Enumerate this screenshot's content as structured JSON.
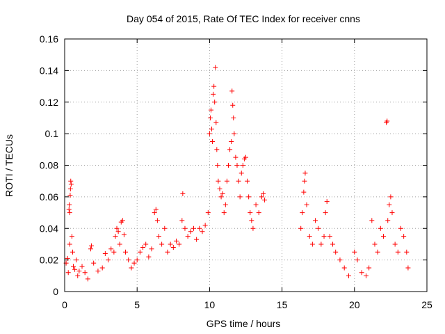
{
  "chart_data": {
    "type": "scatter",
    "title": "Day 054 of 2015, Rate Of TEC Index for receiver cnns",
    "xlabel": "GPS time / hours",
    "ylabel": "ROTI / TECUs",
    "xlim": [
      0,
      25
    ],
    "ylim": [
      0,
      0.16
    ],
    "xticks": [
      0,
      5,
      10,
      15,
      20,
      25
    ],
    "yticks": [
      0,
      0.02,
      0.04,
      0.06,
      0.08,
      0.1,
      0.12,
      0.14,
      0.16
    ],
    "xtick_labels": [
      "0",
      "5",
      "10",
      "15",
      "20",
      "25"
    ],
    "ytick_labels": [
      "0",
      "0.02",
      "0.04",
      "0.06",
      "0.08",
      "0.1",
      "0.12",
      "0.14",
      "0.16"
    ],
    "grid": true,
    "marker": "+",
    "colors": {
      "points": "#ff0000",
      "grid": "#a0a0a0",
      "axis": "#000000"
    },
    "series": [
      {
        "name": "ROTI",
        "points": [
          [
            0.1,
            0.018
          ],
          [
            0.2,
            0.021
          ],
          [
            0.25,
            0.012
          ],
          [
            0.3,
            0.052
          ],
          [
            0.32,
            0.055
          ],
          [
            0.35,
            0.05
          ],
          [
            0.38,
            0.061
          ],
          [
            0.4,
            0.065
          ],
          [
            0.42,
            0.07
          ],
          [
            0.45,
            0.068
          ],
          [
            0.35,
            0.03
          ],
          [
            0.5,
            0.035
          ],
          [
            0.55,
            0.025
          ],
          [
            0.6,
            0.016
          ],
          [
            0.7,
            0.014
          ],
          [
            0.8,
            0.02
          ],
          [
            0.9,
            0.01
          ],
          [
            1.0,
            0.013
          ],
          [
            1.2,
            0.016
          ],
          [
            1.4,
            0.012
          ],
          [
            1.6,
            0.008
          ],
          [
            1.8,
            0.027
          ],
          [
            1.85,
            0.029
          ],
          [
            2.0,
            0.018
          ],
          [
            2.3,
            0.013
          ],
          [
            2.6,
            0.015
          ],
          [
            2.8,
            0.024
          ],
          [
            3.0,
            0.02
          ],
          [
            3.2,
            0.027
          ],
          [
            3.4,
            0.025
          ],
          [
            3.5,
            0.035
          ],
          [
            3.6,
            0.04
          ],
          [
            3.7,
            0.038
          ],
          [
            3.8,
            0.03
          ],
          [
            3.9,
            0.044
          ],
          [
            4.0,
            0.045
          ],
          [
            4.1,
            0.036
          ],
          [
            4.2,
            0.025
          ],
          [
            4.4,
            0.02
          ],
          [
            4.6,
            0.015
          ],
          [
            4.8,
            0.018
          ],
          [
            5.0,
            0.02
          ],
          [
            5.2,
            0.025
          ],
          [
            5.4,
            0.028
          ],
          [
            5.6,
            0.03
          ],
          [
            5.8,
            0.022
          ],
          [
            6.0,
            0.027
          ],
          [
            6.2,
            0.05
          ],
          [
            6.3,
            0.052
          ],
          [
            6.4,
            0.045
          ],
          [
            6.5,
            0.035
          ],
          [
            6.7,
            0.03
          ],
          [
            6.9,
            0.04
          ],
          [
            7.1,
            0.025
          ],
          [
            7.3,
            0.03
          ],
          [
            7.5,
            0.028
          ],
          [
            7.7,
            0.032
          ],
          [
            7.9,
            0.03
          ],
          [
            8.1,
            0.045
          ],
          [
            8.15,
            0.062
          ],
          [
            8.3,
            0.04
          ],
          [
            8.5,
            0.035
          ],
          [
            8.7,
            0.038
          ],
          [
            8.9,
            0.04
          ],
          [
            9.1,
            0.033
          ],
          [
            9.3,
            0.04
          ],
          [
            9.5,
            0.038
          ],
          [
            9.7,
            0.042
          ],
          [
            9.9,
            0.05
          ],
          [
            10.0,
            0.1
          ],
          [
            10.05,
            0.11
          ],
          [
            10.1,
            0.115
          ],
          [
            10.15,
            0.103
          ],
          [
            10.2,
            0.095
          ],
          [
            10.25,
            0.125
          ],
          [
            10.3,
            0.13
          ],
          [
            10.35,
            0.12
          ],
          [
            10.4,
            0.142
          ],
          [
            10.45,
            0.107
          ],
          [
            10.5,
            0.09
          ],
          [
            10.55,
            0.08
          ],
          [
            10.6,
            0.07
          ],
          [
            10.7,
            0.065
          ],
          [
            10.8,
            0.06
          ],
          [
            10.9,
            0.062
          ],
          [
            11.0,
            0.05
          ],
          [
            11.1,
            0.055
          ],
          [
            11.2,
            0.07
          ],
          [
            11.3,
            0.08
          ],
          [
            11.4,
            0.09
          ],
          [
            11.5,
            0.095
          ],
          [
            11.55,
            0.127
          ],
          [
            11.6,
            0.118
          ],
          [
            11.65,
            0.11
          ],
          [
            11.7,
            0.1
          ],
          [
            11.8,
            0.085
          ],
          [
            11.9,
            0.08
          ],
          [
            12.0,
            0.07
          ],
          [
            12.1,
            0.06
          ],
          [
            12.2,
            0.075
          ],
          [
            12.3,
            0.08
          ],
          [
            12.4,
            0.084
          ],
          [
            12.5,
            0.085
          ],
          [
            12.6,
            0.07
          ],
          [
            12.7,
            0.06
          ],
          [
            12.8,
            0.05
          ],
          [
            12.9,
            0.045
          ],
          [
            13.0,
            0.04
          ],
          [
            13.2,
            0.055
          ],
          [
            13.4,
            0.05
          ],
          [
            13.6,
            0.06
          ],
          [
            13.7,
            0.062
          ],
          [
            13.8,
            0.058
          ],
          [
            16.3,
            0.04
          ],
          [
            16.4,
            0.05
          ],
          [
            16.5,
            0.063
          ],
          [
            16.55,
            0.07
          ],
          [
            16.6,
            0.075
          ],
          [
            16.7,
            0.055
          ],
          [
            16.9,
            0.035
          ],
          [
            17.1,
            0.03
          ],
          [
            17.3,
            0.045
          ],
          [
            17.5,
            0.04
          ],
          [
            17.7,
            0.03
          ],
          [
            17.9,
            0.035
          ],
          [
            18.0,
            0.05
          ],
          [
            18.1,
            0.057
          ],
          [
            18.3,
            0.035
          ],
          [
            18.5,
            0.03
          ],
          [
            18.7,
            0.025
          ],
          [
            19.0,
            0.02
          ],
          [
            19.3,
            0.015
          ],
          [
            19.6,
            0.01
          ],
          [
            20.0,
            0.025
          ],
          [
            20.2,
            0.02
          ],
          [
            20.5,
            0.012
          ],
          [
            20.8,
            0.01
          ],
          [
            21.0,
            0.015
          ],
          [
            21.2,
            0.045
          ],
          [
            21.4,
            0.03
          ],
          [
            21.6,
            0.025
          ],
          [
            21.8,
            0.04
          ],
          [
            22.0,
            0.035
          ],
          [
            22.2,
            0.107
          ],
          [
            22.25,
            0.108
          ],
          [
            22.3,
            0.045
          ],
          [
            22.4,
            0.055
          ],
          [
            22.5,
            0.06
          ],
          [
            22.6,
            0.05
          ],
          [
            22.8,
            0.03
          ],
          [
            23.0,
            0.025
          ],
          [
            23.2,
            0.04
          ],
          [
            23.4,
            0.035
          ],
          [
            23.6,
            0.025
          ],
          [
            23.7,
            0.015
          ]
        ]
      }
    ]
  }
}
